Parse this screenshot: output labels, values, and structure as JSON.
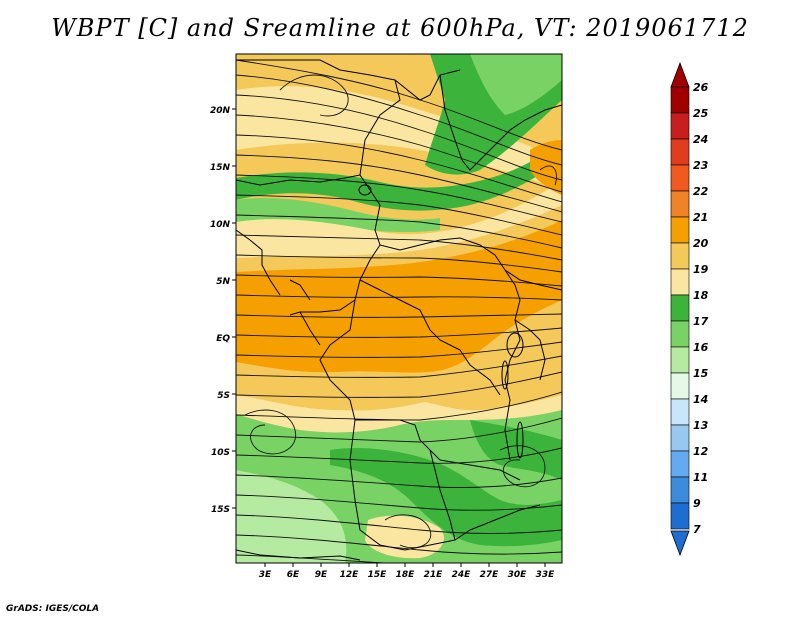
{
  "title": "WBPT [C] and Sreamline at 600hPa, VT: 2019061712",
  "credit": "GrADS: IGES/COLA",
  "map": {
    "lat_labels": [
      "20N",
      "15N",
      "10N",
      "5N",
      "EQ",
      "5S",
      "10S",
      "15S"
    ],
    "lon_labels": [
      "3E",
      "6E",
      "9E",
      "12E",
      "15E",
      "18E",
      "21E",
      "24E",
      "27E",
      "30E",
      "33E"
    ]
  },
  "colorbar": {
    "labels": [
      "26",
      "25",
      "24",
      "23",
      "22",
      "21",
      "20",
      "19",
      "18",
      "17",
      "16",
      "15",
      "14",
      "13",
      "12",
      "11",
      "9",
      "7"
    ],
    "colors": [
      "#a00000",
      "#c81e1e",
      "#e03c1e",
      "#f05a1e",
      "#f08228",
      "#f5a000",
      "#f5c85a",
      "#fae6a0",
      "#3cb43c",
      "#78d264",
      "#b4eba0",
      "#e6f8e6",
      "#c8e6fa",
      "#96c8f0",
      "#64aaf0",
      "#3c8cdc",
      "#1e6ed2"
    ]
  }
}
